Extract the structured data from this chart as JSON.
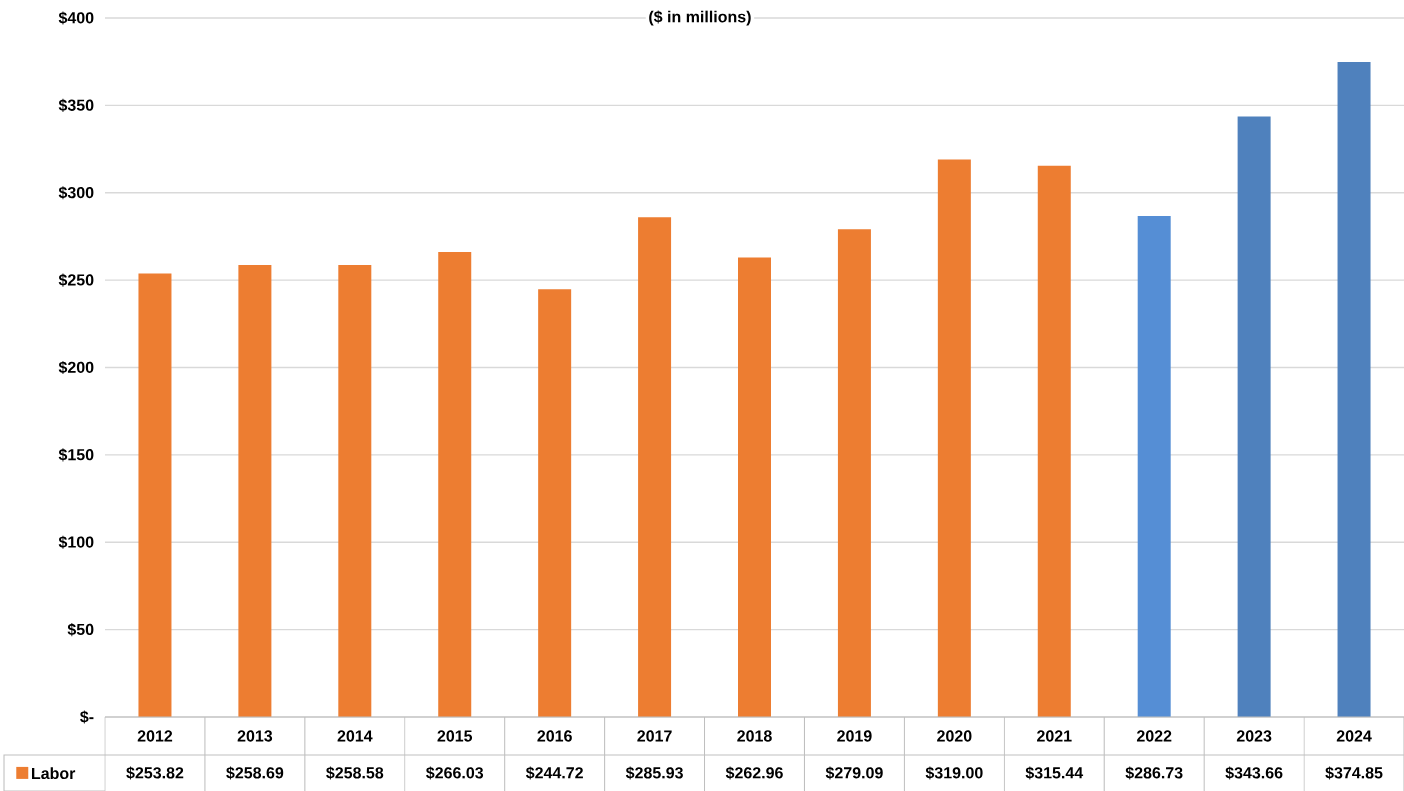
{
  "chart_data": {
    "type": "bar",
    "title": "($ in millions)",
    "categories": [
      "2012",
      "2013",
      "2014",
      "2015",
      "2016",
      "2017",
      "2018",
      "2019",
      "2020",
      "2021",
      "2022",
      "2023",
      "2024"
    ],
    "series": [
      {
        "name": "Labor",
        "color": "#ed7d31",
        "colors": [
          "#ed7d31",
          "#ed7d31",
          "#ed7d31",
          "#ed7d31",
          "#ed7d31",
          "#ed7d31",
          "#ed7d31",
          "#ed7d31",
          "#ed7d31",
          "#ed7d31",
          "#558ed5",
          "#4f81bd",
          "#4f81bd"
        ],
        "values": [
          253.82,
          258.69,
          258.58,
          266.03,
          244.72,
          285.93,
          262.96,
          279.09,
          319.0,
          315.44,
          286.73,
          343.66,
          374.85
        ],
        "value_labels": [
          "$253.82",
          "$258.69",
          "$258.58",
          "$266.03",
          "$244.72",
          "$285.93",
          "$262.96",
          "$279.09",
          "$319.00",
          "$315.44",
          "$286.73",
          "$343.66",
          "$374.85"
        ]
      }
    ],
    "ylim": [
      0,
      400
    ],
    "yticks": [
      {
        "value": 0,
        "label": "$-"
      },
      {
        "value": 50,
        "label": "$50"
      },
      {
        "value": 100,
        "label": "$100"
      },
      {
        "value": 150,
        "label": "$150"
      },
      {
        "value": 200,
        "label": "$200"
      },
      {
        "value": 250,
        "label": "$250"
      },
      {
        "value": 300,
        "label": "$300"
      },
      {
        "value": 350,
        "label": "$350"
      },
      {
        "value": 400,
        "label": "$400"
      }
    ],
    "grid": "y",
    "legend": "bottom"
  }
}
